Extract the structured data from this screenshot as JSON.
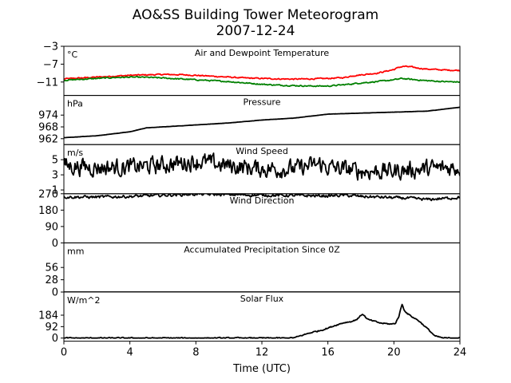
{
  "figure": {
    "title_line1": "AO&SS Building Tower Meteorogram",
    "title_line2": "2007-12-24",
    "xlabel": "Time (UTC)",
    "x_ticks": [
      "0",
      "4",
      "8",
      "12",
      "16",
      "20",
      "24"
    ]
  },
  "chart_data": [
    {
      "type": "line",
      "title": "Air and Dewpoint Temperature",
      "unit": "°C",
      "xlim": [
        0,
        24
      ],
      "ylim": [
        -14,
        -3
      ],
      "y_ticks": [
        -3,
        -7,
        -11
      ],
      "y_tick_labels": [
        "−3",
        "−7",
        "−11"
      ],
      "series": [
        {
          "color": "#ff0000",
          "noise": 0.15,
          "x": [
            0,
            1,
            2,
            3,
            4,
            5,
            6,
            7,
            8,
            9,
            10,
            11,
            12,
            13,
            14,
            15,
            16,
            17,
            17.5,
            18,
            18.5,
            19,
            19.5,
            20,
            20.3,
            20.6,
            21,
            21.5,
            22,
            23,
            24
          ],
          "y": [
            -10.3,
            -10.1,
            -9.9,
            -9.7,
            -9.5,
            -9.4,
            -9.3,
            -9.35,
            -9.5,
            -9.7,
            -9.9,
            -10.1,
            -10.2,
            -10.3,
            -10.35,
            -10.3,
            -10.2,
            -10.0,
            -9.6,
            -9.4,
            -9.2,
            -9.0,
            -8.6,
            -8.2,
            -7.7,
            -7.5,
            -7.6,
            -7.9,
            -8.1,
            -8.3,
            -8.4
          ]
        },
        {
          "color": "#008000",
          "noise": 0.15,
          "x": [
            0,
            1,
            2,
            3,
            4,
            5,
            6,
            7,
            8,
            9,
            10,
            11,
            12,
            13,
            14,
            15,
            16,
            17,
            18,
            19,
            20,
            20.5,
            21,
            22,
            23,
            24
          ],
          "y": [
            -10.6,
            -10.4,
            -10.2,
            -10.0,
            -9.9,
            -9.95,
            -10.1,
            -10.3,
            -10.5,
            -10.7,
            -10.9,
            -11.2,
            -11.5,
            -11.7,
            -11.8,
            -11.9,
            -11.9,
            -11.6,
            -11.2,
            -10.9,
            -10.5,
            -10.2,
            -10.4,
            -10.7,
            -10.9,
            -11.0
          ]
        }
      ]
    },
    {
      "type": "line",
      "title": "Pressure",
      "unit": "hPa",
      "xlim": [
        0,
        24
      ],
      "ylim": [
        959,
        984
      ],
      "y_ticks": [
        962,
        968,
        974
      ],
      "y_tick_labels": [
        "962",
        "968",
        "974"
      ],
      "series": [
        {
          "color": "#000000",
          "noise": 0.05,
          "x": [
            0,
            2,
            4,
            5,
            6,
            8,
            10,
            12,
            13,
            14,
            16,
            18,
            20,
            22,
            23,
            24
          ],
          "y": [
            962.5,
            963.5,
            965.5,
            967.5,
            968.0,
            969.0,
            970.0,
            971.5,
            972.0,
            972.5,
            974.5,
            975.0,
            975.5,
            976.0,
            977.0,
            978.0
          ]
        }
      ]
    },
    {
      "type": "line",
      "title": "Wind Speed",
      "unit": "m/s",
      "xlim": [
        0,
        24
      ],
      "ylim": [
        0.5,
        7
      ],
      "y_ticks": [
        1,
        3,
        5
      ],
      "y_tick_labels": [
        "1",
        "3",
        "5"
      ],
      "series": [
        {
          "color": "#000000",
          "noise": 1.3,
          "x": [
            0,
            2,
            4,
            6,
            8,
            10,
            12,
            14,
            15.5,
            16,
            18,
            20,
            22,
            24
          ],
          "y": [
            4.2,
            4.0,
            4.0,
            4.3,
            4.8,
            4.2,
            3.8,
            3.8,
            4.4,
            4.0,
            3.5,
            3.5,
            3.8,
            4.0
          ]
        }
      ]
    },
    {
      "type": "line",
      "title": "Wind Direction",
      "unit": "",
      "xlim": [
        0,
        24
      ],
      "ylim": [
        0,
        270
      ],
      "y_ticks": [
        0,
        90,
        180,
        270
      ],
      "y_tick_labels": [
        "0",
        "90",
        "180",
        "270"
      ],
      "series": [
        {
          "color": "#000000",
          "noise": 9,
          "x": [
            0,
            2,
            4,
            6,
            8,
            10,
            12,
            14,
            16,
            17,
            18,
            19,
            20,
            21,
            22,
            23,
            24
          ],
          "y": [
            252,
            252,
            255,
            262,
            268,
            265,
            262,
            260,
            258,
            262,
            255,
            252,
            248,
            245,
            238,
            244,
            250
          ]
        }
      ]
    },
    {
      "type": "line",
      "title": "Accumulated Precipitation Since 0Z",
      "unit": "mm",
      "xlim": [
        0,
        24
      ],
      "ylim": [
        0,
        112
      ],
      "y_ticks": [
        0,
        28,
        56
      ],
      "y_tick_labels": [
        "0",
        "28",
        "56"
      ],
      "series": [
        {
          "color": "#000000",
          "noise": 0,
          "x": [
            0,
            24
          ],
          "y": [
            0,
            0
          ]
        }
      ]
    },
    {
      "type": "line",
      "title": "Solar Flux",
      "unit": "W/m^2",
      "xlim": [
        0,
        24
      ],
      "ylim": [
        -25,
        370
      ],
      "y_ticks": [
        0,
        92,
        184
      ],
      "y_tick_labels": [
        "0",
        "92",
        "184"
      ],
      "series": [
        {
          "color": "#000000",
          "noise": 6,
          "x": [
            0,
            13.5,
            14,
            14.5,
            15,
            15.5,
            16,
            16.5,
            17,
            17.5,
            17.8,
            18.1,
            18.4,
            18.8,
            19.2,
            19.6,
            19.9,
            20.1,
            20.3,
            20.5,
            20.6,
            20.8,
            21.0,
            21.5,
            22.0,
            22.5,
            23.0,
            24
          ],
          "y": [
            0,
            0,
            3,
            25,
            45,
            60,
            80,
            105,
            125,
            135,
            155,
            195,
            150,
            135,
            120,
            115,
            112,
            120,
            175,
            275,
            230,
            200,
            180,
            140,
            80,
            15,
            0,
            0
          ]
        }
      ]
    }
  ]
}
